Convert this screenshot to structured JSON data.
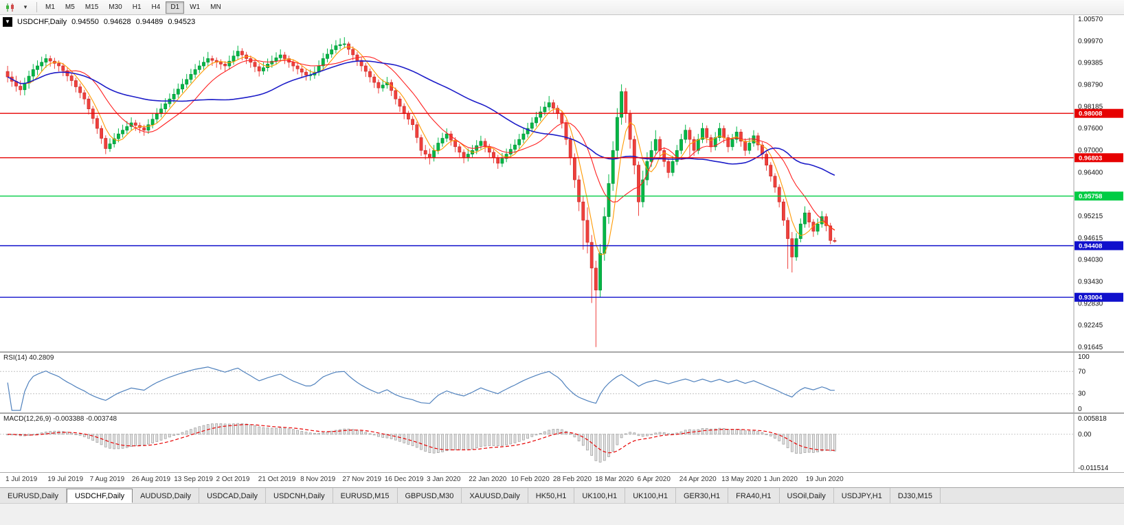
{
  "toolbar": {
    "icons": [
      {
        "name": "charts-icon"
      },
      {
        "name": "caret-down-icon",
        "glyph": "▾"
      }
    ],
    "timeframes": [
      "M1",
      "M5",
      "M15",
      "M30",
      "H1",
      "H4",
      "D1",
      "W1",
      "MN"
    ],
    "active_timeframe": "D1"
  },
  "chart": {
    "menu_glyph": "▼",
    "title_symbol": "USDCHF,Daily",
    "ohlc": {
      "open": "0.94550",
      "high": "0.94628",
      "low": "0.94489",
      "close": "0.94523"
    },
    "price_axis_labels": [
      "1.00570",
      "0.99970",
      "0.99385",
      "0.98790",
      "0.98185",
      "0.97600",
      "0.97000",
      "0.96400",
      "0.95810",
      "0.95215",
      "0.94615",
      "0.94030",
      "0.93430",
      "0.92830",
      "0.92245",
      "0.91645"
    ],
    "levels": [
      {
        "label": "0.98008",
        "price": 0.98008,
        "color": "#e60000",
        "type": "resistance"
      },
      {
        "label": "0.96803",
        "price": 0.96803,
        "color": "#e60000",
        "type": "resistance"
      },
      {
        "label": "0.95758",
        "price": 0.95758,
        "color": "#00cc44",
        "type": "support"
      },
      {
        "label": "0.94408",
        "price": 0.94408,
        "color": "#1010cc",
        "type": "support"
      },
      {
        "label": "0.93004",
        "price": 0.93004,
        "color": "#1010cc",
        "type": "support"
      }
    ],
    "date_labels": [
      "1 Jul 2019",
      "19 Jul 2019",
      "7 Aug 2019",
      "26 Aug 2019",
      "13 Sep 2019",
      "2 Oct 2019",
      "21 Oct 2019",
      "8 Nov 2019",
      "27 Nov 2019",
      "16 Dec 2019",
      "3 Jan 2020",
      "22 Jan 2020",
      "10 Feb 2020",
      "28 Feb 2020",
      "18 Mar 2020",
      "6 Apr 2020",
      "24 Apr 2020",
      "13 May 2020",
      "1 Jun 2020",
      "19 Jun 2020"
    ],
    "colors": {
      "up_candle": "#00b746",
      "down_candle": "#ef403c",
      "up_border": "#008a34",
      "down_border": "#c32a27",
      "axis_border": "#a0a0a0"
    }
  },
  "rsi": {
    "header": "RSI(14) 40.2809",
    "period": 14,
    "last_value": 40.2809,
    "axis_labels": [
      "100",
      "70",
      "30",
      "0"
    ],
    "guide_levels": [
      70,
      30
    ],
    "line_color": "#4f81bd"
  },
  "macd": {
    "header": "MACD(12,26,9) -0.003388 -0.003748",
    "params": [
      12,
      26,
      9
    ],
    "macd_value": -0.003388,
    "signal_value": -0.003748,
    "axis_labels": [
      "0.005818",
      "0.00",
      "-0.011514"
    ],
    "range": [
      -0.011514,
      0.005818
    ],
    "histogram_fill": "#e2e2e2",
    "histogram_border": "#9a9a9a",
    "signal_color": "#e60000"
  },
  "tabs": {
    "active": "USDCHF,Daily",
    "items": [
      "EURUSD,Daily",
      "USDCHF,Daily",
      "AUDUSD,Daily",
      "USDCAD,Daily",
      "USDCNH,Daily",
      "EURUSD,M15",
      "GBPUSD,M30",
      "XAUUSD,Daily",
      "HK50,H1",
      "UK100,H1",
      "UK100,H1",
      "GER30,H1",
      "FRA40,H1",
      "USOil,Daily",
      "USDJPY,H1",
      "DJ30,M15"
    ],
    "divider_glyph": "|"
  },
  "chart_data": {
    "type": "candlestick",
    "symbol": "USDCHF",
    "timeframe": "Daily",
    "x_start": "1 Jul 2019",
    "x_end": "26 Jun 2020",
    "y_range": [
      0.91645,
      1.0057
    ],
    "ohlc_format": [
      "open",
      "high",
      "low",
      "close"
    ],
    "overlays": [
      {
        "name": "MA fast",
        "color": "#ff9900",
        "period": 5
      },
      {
        "name": "MA mid",
        "color": "#ff2020",
        "period": 13
      },
      {
        "name": "MA slow",
        "color": "#1c1cc8",
        "period": 40
      }
    ],
    "indicators": [
      {
        "name": "RSI",
        "period": 14,
        "last_value": 40.2809,
        "scale": [
          0,
          100
        ]
      },
      {
        "name": "MACD",
        "fast": 12,
        "slow": 26,
        "signal": 9,
        "macd": -0.003388,
        "signal_value": -0.003748
      }
    ],
    "candles": [
      [
        0.9915,
        0.993,
        0.9885,
        0.99
      ],
      [
        0.99,
        0.9915,
        0.9873,
        0.9888
      ],
      [
        0.9888,
        0.9903,
        0.986,
        0.9875
      ],
      [
        0.9875,
        0.989,
        0.985,
        0.9865
      ],
      [
        0.9865,
        0.9898,
        0.985,
        0.9883
      ],
      [
        0.9883,
        0.9917,
        0.9868,
        0.9902
      ],
      [
        0.9902,
        0.9935,
        0.9887,
        0.992
      ],
      [
        0.992,
        0.9945,
        0.9905,
        0.993
      ],
      [
        0.993,
        0.9955,
        0.9915,
        0.994
      ],
      [
        0.994,
        0.9962,
        0.9925,
        0.995
      ],
      [
        0.995,
        0.9958,
        0.9928,
        0.9943
      ],
      [
        0.9943,
        0.9952,
        0.9922,
        0.9937
      ],
      [
        0.9937,
        0.9945,
        0.9915,
        0.993
      ],
      [
        0.993,
        0.9938,
        0.9902,
        0.9917
      ],
      [
        0.9917,
        0.9925,
        0.9888,
        0.9903
      ],
      [
        0.9903,
        0.9912,
        0.9875,
        0.989
      ],
      [
        0.989,
        0.9898,
        0.9858,
        0.9873
      ],
      [
        0.9873,
        0.9882,
        0.9842,
        0.9857
      ],
      [
        0.9857,
        0.9865,
        0.9825,
        0.984
      ],
      [
        0.984,
        0.9848,
        0.9798,
        0.9813
      ],
      [
        0.9813,
        0.9821,
        0.9772,
        0.9787
      ],
      [
        0.9787,
        0.9795,
        0.9745,
        0.976
      ],
      [
        0.976,
        0.9768,
        0.9718,
        0.9733
      ],
      [
        0.9733,
        0.9741,
        0.969,
        0.9705
      ],
      [
        0.9705,
        0.9733,
        0.9696,
        0.9718
      ],
      [
        0.9718,
        0.9747,
        0.9708,
        0.9732
      ],
      [
        0.9732,
        0.976,
        0.9722,
        0.9745
      ],
      [
        0.9745,
        0.977,
        0.9735,
        0.9755
      ],
      [
        0.9755,
        0.978,
        0.9745,
        0.9765
      ],
      [
        0.9765,
        0.979,
        0.9755,
        0.9775
      ],
      [
        0.9775,
        0.9783,
        0.9753,
        0.9768
      ],
      [
        0.9768,
        0.9776,
        0.9747,
        0.9762
      ],
      [
        0.9762,
        0.977,
        0.974,
        0.9755
      ],
      [
        0.9755,
        0.9785,
        0.9745,
        0.977
      ],
      [
        0.977,
        0.98,
        0.976,
        0.9785
      ],
      [
        0.9785,
        0.9815,
        0.9775,
        0.98
      ],
      [
        0.98,
        0.9828,
        0.979,
        0.9813
      ],
      [
        0.9813,
        0.9842,
        0.9803,
        0.9827
      ],
      [
        0.9827,
        0.9855,
        0.9817,
        0.984
      ],
      [
        0.984,
        0.9868,
        0.983,
        0.9853
      ],
      [
        0.9853,
        0.9882,
        0.9843,
        0.9867
      ],
      [
        0.9867,
        0.9895,
        0.9857,
        0.988
      ],
      [
        0.988,
        0.9908,
        0.987,
        0.9893
      ],
      [
        0.9893,
        0.9922,
        0.9883,
        0.9907
      ],
      [
        0.9907,
        0.9935,
        0.9897,
        0.992
      ],
      [
        0.992,
        0.9945,
        0.991,
        0.993
      ],
      [
        0.993,
        0.9955,
        0.992,
        0.994
      ],
      [
        0.994,
        0.9968,
        0.993,
        0.995
      ],
      [
        0.995,
        0.9958,
        0.993,
        0.9945
      ],
      [
        0.9945,
        0.9953,
        0.9925,
        0.994
      ],
      [
        0.994,
        0.9948,
        0.992,
        0.9935
      ],
      [
        0.9935,
        0.9943,
        0.9915,
        0.993
      ],
      [
        0.993,
        0.9958,
        0.992,
        0.9943
      ],
      [
        0.9943,
        0.9972,
        0.9933,
        0.9957
      ],
      [
        0.9957,
        0.9985,
        0.9947,
        0.997
      ],
      [
        0.997,
        0.9978,
        0.9945,
        0.996
      ],
      [
        0.996,
        0.9968,
        0.9935,
        0.995
      ],
      [
        0.995,
        0.9958,
        0.9925,
        0.994
      ],
      [
        0.994,
        0.9948,
        0.9913,
        0.9928
      ],
      [
        0.9928,
        0.9936,
        0.9901,
        0.9916
      ],
      [
        0.9916,
        0.994,
        0.9906,
        0.9925
      ],
      [
        0.9925,
        0.995,
        0.9915,
        0.9935
      ],
      [
        0.9935,
        0.9958,
        0.9925,
        0.9943
      ],
      [
        0.9943,
        0.9967,
        0.9933,
        0.9952
      ],
      [
        0.9952,
        0.9975,
        0.9942,
        0.996
      ],
      [
        0.996,
        0.9968,
        0.9935,
        0.995
      ],
      [
        0.995,
        0.9958,
        0.9925,
        0.994
      ],
      [
        0.994,
        0.9948,
        0.9915,
        0.993
      ],
      [
        0.993,
        0.9938,
        0.9907,
        0.9922
      ],
      [
        0.9922,
        0.993,
        0.9898,
        0.9913
      ],
      [
        0.9913,
        0.9921,
        0.989,
        0.9905
      ],
      [
        0.9905,
        0.992,
        0.989,
        0.9905
      ],
      [
        0.9905,
        0.9928,
        0.9895,
        0.9913
      ],
      [
        0.9913,
        0.9945,
        0.9903,
        0.993
      ],
      [
        0.993,
        0.9965,
        0.992,
        0.995
      ],
      [
        0.995,
        0.9977,
        0.994,
        0.9962
      ],
      [
        0.9962,
        0.9989,
        0.9952,
        0.9974
      ],
      [
        0.9974,
        1.0,
        0.9964,
        0.9985
      ],
      [
        0.9985,
        1.0005,
        0.9975,
        0.9988
      ],
      [
        0.9988,
        1.0008,
        0.9978,
        0.999
      ],
      [
        0.999,
        0.9996,
        0.996,
        0.9975
      ],
      [
        0.9975,
        0.9983,
        0.9945,
        0.996
      ],
      [
        0.996,
        0.9968,
        0.993,
        0.9945
      ],
      [
        0.9945,
        0.9953,
        0.9915,
        0.993
      ],
      [
        0.993,
        0.9938,
        0.99,
        0.9915
      ],
      [
        0.9915,
        0.9923,
        0.9885,
        0.99
      ],
      [
        0.99,
        0.9908,
        0.987,
        0.9885
      ],
      [
        0.9885,
        0.9893,
        0.9855,
        0.987
      ],
      [
        0.987,
        0.9893,
        0.986,
        0.9878
      ],
      [
        0.9878,
        0.99,
        0.9868,
        0.9885
      ],
      [
        0.9885,
        0.9893,
        0.9848,
        0.9863
      ],
      [
        0.9863,
        0.9871,
        0.9825,
        0.984
      ],
      [
        0.984,
        0.9848,
        0.9805,
        0.982
      ],
      [
        0.982,
        0.9828,
        0.9785,
        0.98
      ],
      [
        0.98,
        0.9808,
        0.977,
        0.9785
      ],
      [
        0.9785,
        0.9793,
        0.9755,
        0.977
      ],
      [
        0.977,
        0.9778,
        0.972,
        0.9735
      ],
      [
        0.9735,
        0.9743,
        0.9685,
        0.97
      ],
      [
        0.97,
        0.9715,
        0.9675,
        0.969
      ],
      [
        0.969,
        0.9705,
        0.9662,
        0.968
      ],
      [
        0.968,
        0.9715,
        0.967,
        0.97
      ],
      [
        0.97,
        0.9735,
        0.969,
        0.972
      ],
      [
        0.972,
        0.9748,
        0.971,
        0.9733
      ],
      [
        0.9733,
        0.976,
        0.9723,
        0.9745
      ],
      [
        0.9745,
        0.9753,
        0.9713,
        0.9728
      ],
      [
        0.9728,
        0.9736,
        0.9695,
        0.971
      ],
      [
        0.971,
        0.9718,
        0.968,
        0.9695
      ],
      [
        0.9695,
        0.9703,
        0.9665,
        0.968
      ],
      [
        0.968,
        0.9705,
        0.967,
        0.969
      ],
      [
        0.969,
        0.9715,
        0.968,
        0.97
      ],
      [
        0.97,
        0.9728,
        0.969,
        0.9713
      ],
      [
        0.9713,
        0.974,
        0.9703,
        0.9725
      ],
      [
        0.9725,
        0.9733,
        0.9695,
        0.971
      ],
      [
        0.971,
        0.9718,
        0.968,
        0.9695
      ],
      [
        0.9695,
        0.9703,
        0.9665,
        0.968
      ],
      [
        0.968,
        0.9688,
        0.965,
        0.9665
      ],
      [
        0.9665,
        0.9693,
        0.9655,
        0.9678
      ],
      [
        0.9678,
        0.9705,
        0.9668,
        0.969
      ],
      [
        0.969,
        0.9718,
        0.968,
        0.9703
      ],
      [
        0.9703,
        0.973,
        0.9693,
        0.9715
      ],
      [
        0.9715,
        0.9745,
        0.9705,
        0.973
      ],
      [
        0.973,
        0.976,
        0.972,
        0.9745
      ],
      [
        0.9745,
        0.9775,
        0.9735,
        0.976
      ],
      [
        0.976,
        0.979,
        0.975,
        0.9775
      ],
      [
        0.9775,
        0.9805,
        0.9765,
        0.979
      ],
      [
        0.979,
        0.982,
        0.978,
        0.9805
      ],
      [
        0.9805,
        0.9833,
        0.9795,
        0.9818
      ],
      [
        0.9818,
        0.9848,
        0.9808,
        0.983
      ],
      [
        0.983,
        0.9838,
        0.98,
        0.9815
      ],
      [
        0.9815,
        0.9823,
        0.9785,
        0.98
      ],
      [
        0.98,
        0.9808,
        0.976,
        0.9775
      ],
      [
        0.9775,
        0.9783,
        0.9715,
        0.973
      ],
      [
        0.973,
        0.974,
        0.966,
        0.968
      ],
      [
        0.968,
        0.9692,
        0.9598,
        0.962
      ],
      [
        0.962,
        0.9632,
        0.9535,
        0.956
      ],
      [
        0.956,
        0.9575,
        0.943,
        0.951
      ],
      [
        0.951,
        0.9545,
        0.942,
        0.945
      ],
      [
        0.945,
        0.947,
        0.9285,
        0.938
      ],
      [
        0.938,
        0.94,
        0.9165,
        0.932
      ],
      [
        0.932,
        0.9445,
        0.93,
        0.942
      ],
      [
        0.942,
        0.9545,
        0.94,
        0.952
      ],
      [
        0.952,
        0.9635,
        0.95,
        0.961
      ],
      [
        0.961,
        0.9725,
        0.959,
        0.97
      ],
      [
        0.97,
        0.9815,
        0.968,
        0.979
      ],
      [
        0.979,
        0.988,
        0.977,
        0.986
      ],
      [
        0.986,
        0.987,
        0.9775,
        0.98
      ],
      [
        0.98,
        0.981,
        0.9705,
        0.973
      ],
      [
        0.973,
        0.974,
        0.9635,
        0.966
      ],
      [
        0.966,
        0.967,
        0.9522,
        0.956
      ],
      [
        0.956,
        0.9645,
        0.9545,
        0.962
      ],
      [
        0.962,
        0.9695,
        0.9605,
        0.967
      ],
      [
        0.967,
        0.9725,
        0.9655,
        0.97
      ],
      [
        0.97,
        0.9755,
        0.969,
        0.973
      ],
      [
        0.973,
        0.9738,
        0.9685,
        0.97
      ],
      [
        0.97,
        0.9708,
        0.9655,
        0.967
      ],
      [
        0.967,
        0.9678,
        0.9625,
        0.964
      ],
      [
        0.964,
        0.9685,
        0.963,
        0.967
      ],
      [
        0.967,
        0.9715,
        0.966,
        0.97
      ],
      [
        0.97,
        0.9745,
        0.969,
        0.973
      ],
      [
        0.973,
        0.977,
        0.972,
        0.9755
      ],
      [
        0.9755,
        0.9763,
        0.9685,
        0.973
      ],
      [
        0.973,
        0.9738,
        0.9685,
        0.97
      ],
      [
        0.97,
        0.9745,
        0.969,
        0.973
      ],
      [
        0.973,
        0.9775,
        0.972,
        0.976
      ],
      [
        0.976,
        0.9768,
        0.972,
        0.9735
      ],
      [
        0.9735,
        0.9743,
        0.9695,
        0.971
      ],
      [
        0.971,
        0.975,
        0.97,
        0.9735
      ],
      [
        0.9735,
        0.9775,
        0.9725,
        0.976
      ],
      [
        0.976,
        0.9768,
        0.972,
        0.9735
      ],
      [
        0.9735,
        0.9743,
        0.9695,
        0.971
      ],
      [
        0.971,
        0.9745,
        0.97,
        0.973
      ],
      [
        0.973,
        0.9765,
        0.972,
        0.975
      ],
      [
        0.975,
        0.9758,
        0.971,
        0.9725
      ],
      [
        0.9725,
        0.9733,
        0.9685,
        0.97
      ],
      [
        0.97,
        0.9735,
        0.969,
        0.972
      ],
      [
        0.972,
        0.9755,
        0.971,
        0.974
      ],
      [
        0.974,
        0.9748,
        0.97,
        0.9715
      ],
      [
        0.9715,
        0.9723,
        0.9675,
        0.969
      ],
      [
        0.969,
        0.9698,
        0.9645,
        0.966
      ],
      [
        0.966,
        0.9668,
        0.9615,
        0.963
      ],
      [
        0.963,
        0.9638,
        0.9585,
        0.96
      ],
      [
        0.96,
        0.9608,
        0.9545,
        0.956
      ],
      [
        0.956,
        0.9568,
        0.9495,
        0.951
      ],
      [
        0.951,
        0.9518,
        0.9378,
        0.946
      ],
      [
        0.946,
        0.9478,
        0.9368,
        0.941
      ],
      [
        0.941,
        0.9475,
        0.94,
        0.946
      ],
      [
        0.946,
        0.9515,
        0.945,
        0.95
      ],
      [
        0.95,
        0.9548,
        0.949,
        0.953
      ],
      [
        0.953,
        0.9538,
        0.949,
        0.9505
      ],
      [
        0.9505,
        0.9513,
        0.9465,
        0.948
      ],
      [
        0.948,
        0.9515,
        0.947,
        0.95
      ],
      [
        0.95,
        0.9535,
        0.949,
        0.952
      ],
      [
        0.952,
        0.9528,
        0.948,
        0.9495
      ],
      [
        0.9495,
        0.9503,
        0.9445,
        0.9455
      ],
      [
        0.9455,
        0.94628,
        0.94489,
        0.94523
      ]
    ]
  }
}
